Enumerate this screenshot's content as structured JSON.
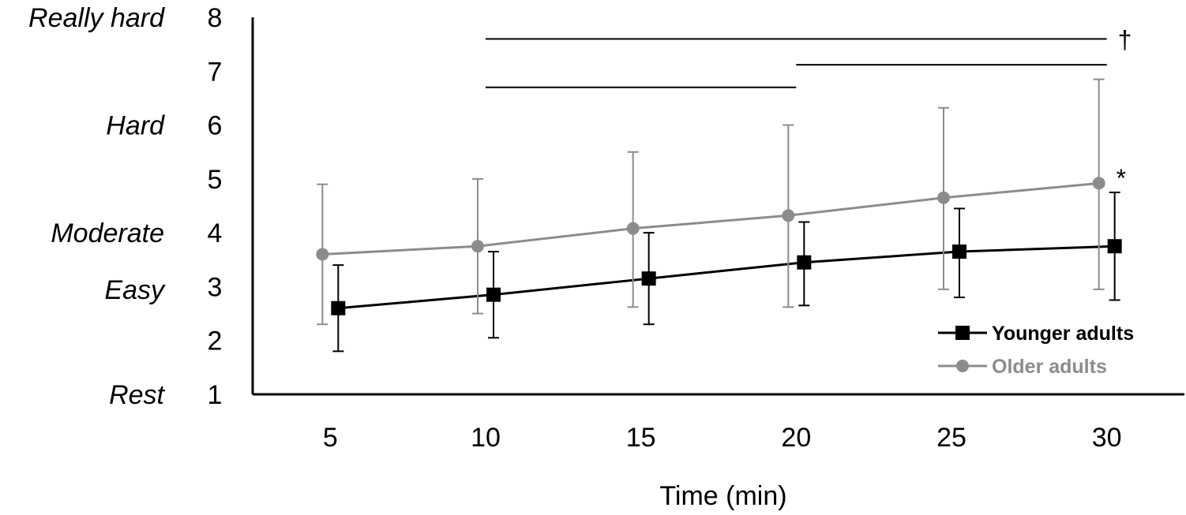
{
  "chart_data": {
    "type": "line",
    "xlabel": "Time (min)",
    "ylabel": "",
    "x": [
      5,
      10,
      15,
      20,
      25,
      30
    ],
    "xlim": [
      2.5,
      32.5
    ],
    "ylim": [
      1,
      8
    ],
    "yticks": [
      1,
      2,
      3,
      4,
      5,
      6,
      7,
      8
    ],
    "y_category_labels": [
      {
        "y": 1,
        "label": "Rest"
      },
      {
        "y": 2.95,
        "label": "Easy"
      },
      {
        "y": 4,
        "label": "Moderate"
      },
      {
        "y": 6,
        "label": "Hard"
      },
      {
        "y": 8,
        "label": "Really hard"
      }
    ],
    "series": [
      {
        "name": "Younger adults",
        "color": "#000000",
        "marker": "square",
        "values": [
          2.6,
          2.85,
          3.15,
          3.45,
          3.65,
          3.75
        ],
        "err_low": [
          1.8,
          2.05,
          2.3,
          2.65,
          2.8,
          2.75
        ],
        "err_high": [
          3.4,
          3.65,
          4.0,
          4.2,
          4.45,
          4.75
        ]
      },
      {
        "name": "Older adults",
        "color": "#8c8c8c",
        "marker": "circle",
        "values": [
          3.6,
          3.75,
          4.08,
          4.32,
          4.65,
          4.92
        ],
        "err_low": [
          2.3,
          2.5,
          2.62,
          2.62,
          2.95,
          2.95
        ],
        "err_high": [
          4.9,
          5.0,
          5.5,
          6.0,
          6.32,
          6.85
        ]
      }
    ],
    "annotations": [
      {
        "text": "†",
        "x_from": 10,
        "x_to": 30,
        "y": 7.6
      },
      {
        "text": "",
        "x_from": 20,
        "x_to": 30,
        "y": 7.12
      },
      {
        "text": "",
        "x_from": 10,
        "x_to": 20,
        "y": 6.7
      },
      {
        "text": "*",
        "x": 30,
        "y": 5.2
      }
    ],
    "legend_position": "bottom-right",
    "grid": false
  }
}
